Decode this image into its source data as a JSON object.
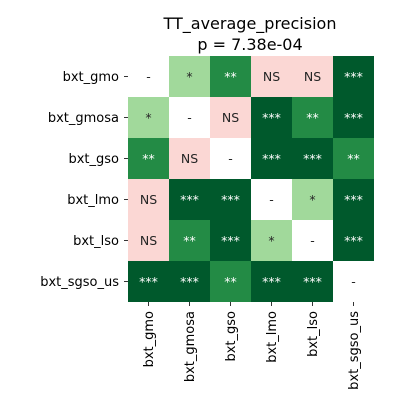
{
  "chart_data": {
    "type": "heatmap",
    "title_lines": [
      "TT_average_precision",
      "p = 7.38e-04"
    ],
    "row_labels": [
      "bxt_gmo",
      "bxt_gmosa",
      "bxt_gso",
      "bxt_lmo",
      "bxt_lso",
      "bxt_sgso_us"
    ],
    "col_labels": [
      "bxt_gmo",
      "bxt_gmosa",
      "bxt_gso",
      "bxt_lmo",
      "bxt_lso",
      "bxt_sgso_us"
    ],
    "cells": [
      [
        "-",
        "*",
        "**",
        "NS",
        "NS",
        "***"
      ],
      [
        "*",
        "-",
        "NS",
        "***",
        "**",
        "***"
      ],
      [
        "**",
        "NS",
        "-",
        "***",
        "***",
        "**"
      ],
      [
        "NS",
        "***",
        "***",
        "-",
        "*",
        "***"
      ],
      [
        "NS",
        "**",
        "***",
        "*",
        "-",
        "***"
      ],
      [
        "***",
        "***",
        "**",
        "***",
        "***",
        "-"
      ]
    ],
    "colors": {
      "-": "#ffffff",
      "NS": "#fbd7d4",
      "*": "#a1d99b",
      "**": "#238b45",
      "***": "#00592c"
    },
    "text_colors": {
      "-": "#262626",
      "NS": "#262626",
      "*": "#262626",
      "**": "#ffffff",
      "***": "#ffffff"
    }
  }
}
